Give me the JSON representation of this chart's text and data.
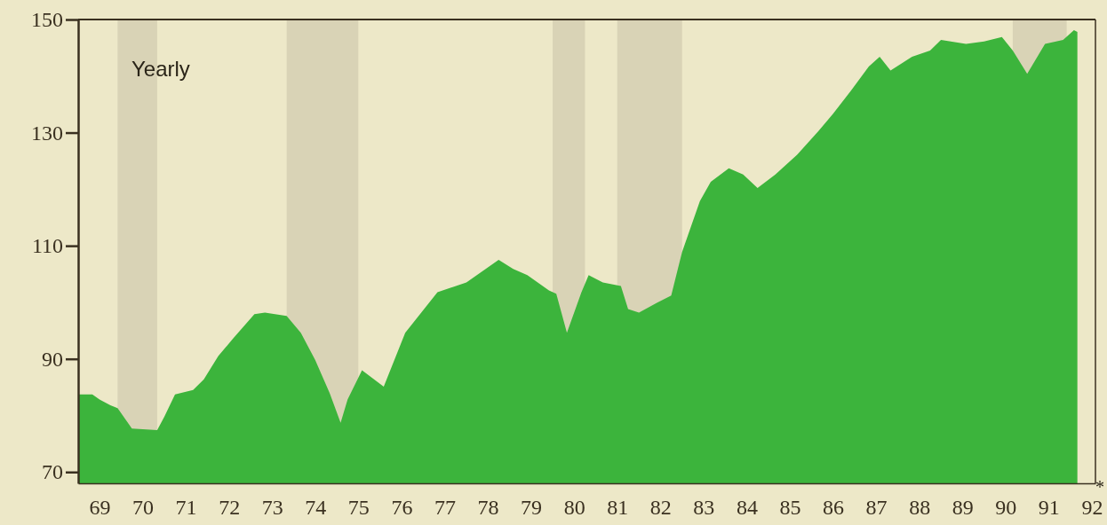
{
  "chart_data": {
    "type": "area",
    "annotations": [
      "Yearly",
      "*"
    ],
    "x": [
      "1969-01",
      "1969-05",
      "1969-07",
      "1969-10",
      "1969-12",
      "1970-04",
      "1970-11",
      "1971-01",
      "1971-04",
      "1971-09",
      "1971-12",
      "1972-04",
      "1972-08",
      "1973-02",
      "1973-05",
      "1973-11",
      "1974-03",
      "1974-07",
      "1974-11",
      "1975-02",
      "1975-04",
      "1975-08",
      "1976-02",
      "1976-08",
      "1977-05",
      "1978-01",
      "1978-10",
      "1979-02",
      "1979-06",
      "1979-12",
      "1980-02",
      "1980-05",
      "1980-09",
      "1980-11",
      "1981-03",
      "1981-08",
      "1981-10",
      "1982-01",
      "1982-06",
      "1982-10",
      "1983-01",
      "1983-06",
      "1983-09",
      "1984-02",
      "1984-06",
      "1984-10",
      "1985-03",
      "1985-09",
      "1986-03",
      "1986-07",
      "1986-12",
      "1987-05",
      "1987-08",
      "1987-11",
      "1988-05",
      "1988-10",
      "1989-01",
      "1989-08",
      "1990-01",
      "1990-06",
      "1990-09",
      "1991-01",
      "1991-06",
      "1991-11",
      "1992-02",
      "1992-03"
    ],
    "series": [
      {
        "color": "#3cb43c",
        "values": [
          83.7,
          83.7,
          82.8,
          81.8,
          81.3,
          77.7,
          77.4,
          79.8,
          83.7,
          84.5,
          86.4,
          90.5,
          93.5,
          97.9,
          98.2,
          97.6,
          94.6,
          89.8,
          83.9,
          78.7,
          82.8,
          88.0,
          85.1,
          94.6,
          101.8,
          103.5,
          107.5,
          105.9,
          104.8,
          102.1,
          101.5,
          94.6,
          101.8,
          104.8,
          103.5,
          102.9,
          98.8,
          98.2,
          99.9,
          101.2,
          108.9,
          117.9,
          121.3,
          123.7,
          122.6,
          120.2,
          122.6,
          126.1,
          130.3,
          133.3,
          137.4,
          141.7,
          143.4,
          141.0,
          143.4,
          144.5,
          146.4,
          145.7,
          146.1,
          146.9,
          144.5,
          140.4,
          145.7,
          146.4,
          148.1,
          147.8
        ]
      }
    ],
    "xlim": [
      "1969-01",
      "1992-08"
    ],
    "ylim": [
      68,
      150
    ],
    "yticks": [
      70,
      90,
      110,
      130,
      150
    ],
    "xticks": [
      {
        "value": "1969-07",
        "label": "69"
      },
      {
        "value": "1970-07",
        "label": "70"
      },
      {
        "value": "1971-07",
        "label": "71"
      },
      {
        "value": "1972-07",
        "label": "72"
      },
      {
        "value": "1973-07",
        "label": "73"
      },
      {
        "value": "1974-07",
        "label": "74"
      },
      {
        "value": "1975-07",
        "label": "75"
      },
      {
        "value": "1976-07",
        "label": "76"
      },
      {
        "value": "1977-07",
        "label": "77"
      },
      {
        "value": "1978-07",
        "label": "78"
      },
      {
        "value": "1979-07",
        "label": "79"
      },
      {
        "value": "1980-07",
        "label": "80"
      },
      {
        "value": "1981-07",
        "label": "81"
      },
      {
        "value": "1982-07",
        "label": "82"
      },
      {
        "value": "1983-07",
        "label": "83"
      },
      {
        "value": "1984-07",
        "label": "84"
      },
      {
        "value": "1985-07",
        "label": "85"
      },
      {
        "value": "1986-07",
        "label": "86"
      },
      {
        "value": "1987-07",
        "label": "87"
      },
      {
        "value": "1988-07",
        "label": "88"
      },
      {
        "value": "1989-07",
        "label": "89"
      },
      {
        "value": "1990-07",
        "label": "90"
      },
      {
        "value": "1991-07",
        "label": "91"
      },
      {
        "value": "1992-07",
        "label": "92"
      }
    ],
    "bands": [
      {
        "axis": "x",
        "from": "1969-12",
        "to": "1970-11",
        "color": "#b4ac94"
      },
      {
        "axis": "x",
        "from": "1973-11",
        "to": "1975-07",
        "color": "#b4ac94"
      },
      {
        "axis": "x",
        "from": "1980-01",
        "to": "1980-10",
        "color": "#b4ac94"
      },
      {
        "axis": "x",
        "from": "1981-07",
        "to": "1983-01",
        "color": "#b4ac94"
      },
      {
        "axis": "x",
        "from": "1990-09",
        "to": "1991-12",
        "color": "#b4ac94"
      }
    ]
  }
}
